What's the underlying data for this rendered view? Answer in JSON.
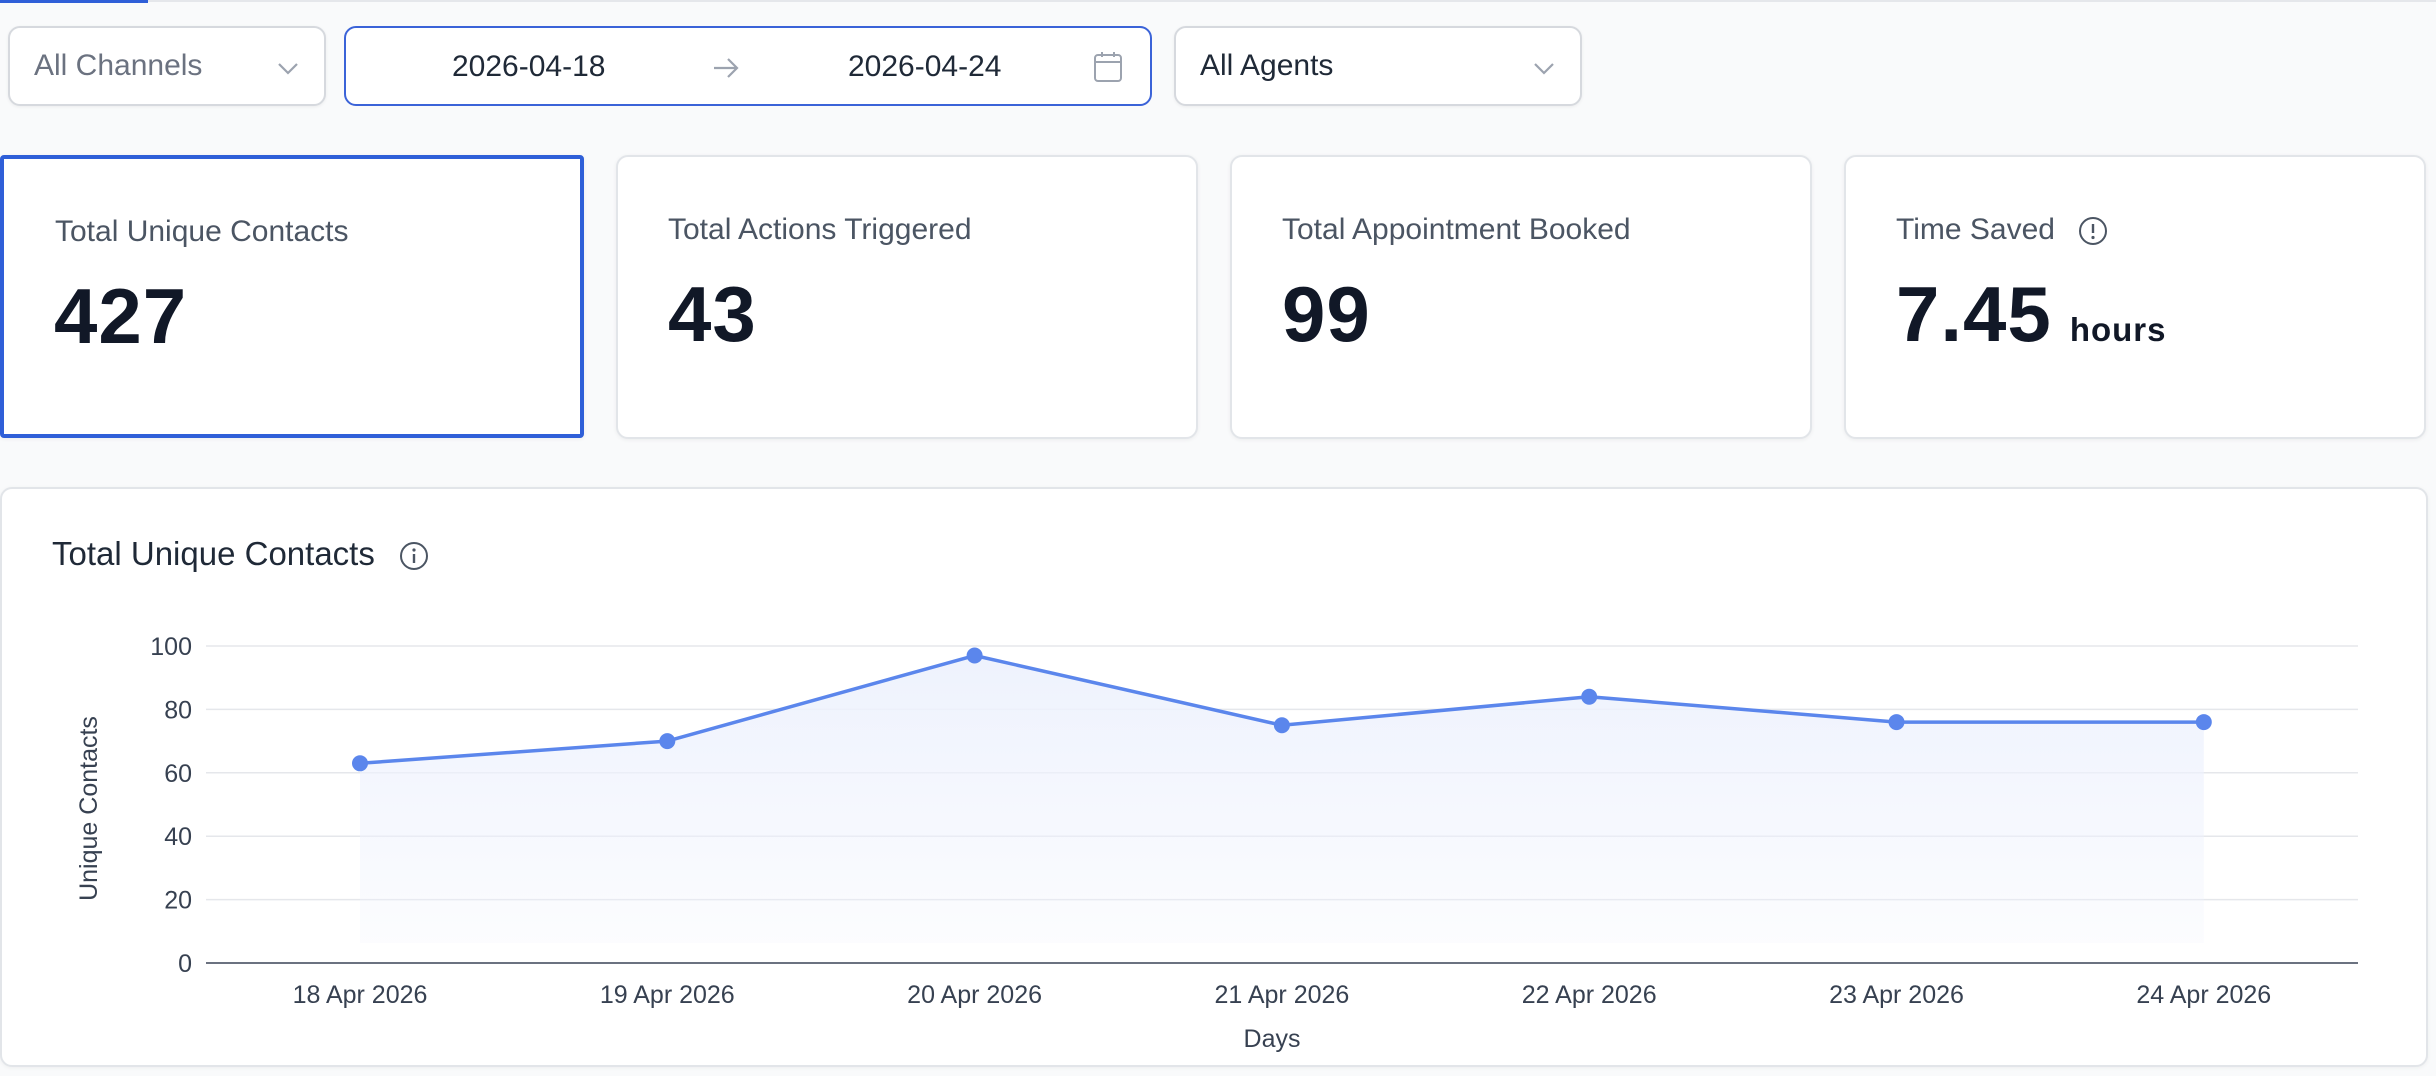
{
  "filters": {
    "channel": "All Channels",
    "date_start": "2026-04-18",
    "date_end": "2026-04-24",
    "agent": "All Agents"
  },
  "cards": [
    {
      "label": "Total Unique Contacts",
      "value": "427"
    },
    {
      "label": "Total Actions Triggered",
      "value": "43"
    },
    {
      "label": "Total Appointment Booked",
      "value": "99"
    },
    {
      "label": "Time Saved",
      "value": "7.45",
      "unit": "hours"
    }
  ],
  "chart": {
    "title": "Total Unique Contacts"
  },
  "colors": {
    "accent": "#2f5fd8",
    "line": "#5b86ec",
    "area": "#eef2fd"
  },
  "chart_data": {
    "type": "area",
    "title": "Total Unique Contacts",
    "categories": [
      "18 Apr 2026",
      "19 Apr 2026",
      "20 Apr 2026",
      "21 Apr 2026",
      "22 Apr 2026",
      "23 Apr 2026",
      "24 Apr 2026"
    ],
    "values": [
      63,
      70,
      97,
      75,
      84,
      76,
      76
    ],
    "xlabel": "Days",
    "ylabel": "Unique Contacts",
    "ylim": [
      0,
      100
    ],
    "yticks": [
      0,
      20,
      40,
      60,
      80,
      100
    ],
    "grid": true,
    "legend": "none"
  }
}
